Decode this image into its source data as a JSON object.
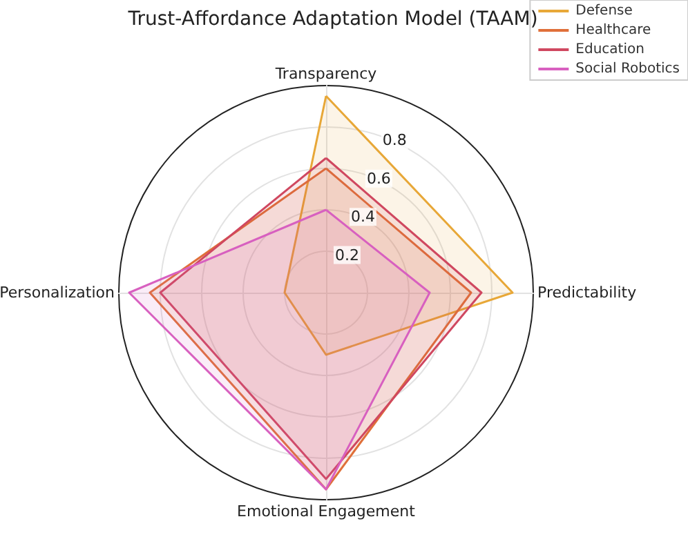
{
  "chart_data": {
    "type": "radar",
    "title": "Trust-Affordance Adaptation Model (TAAM)",
    "categories": [
      "Transparency",
      "Predictability",
      "Emotional Engagement",
      "Personalization"
    ],
    "series": [
      {
        "name": "Defense",
        "color": "#e8a838",
        "values": [
          0.95,
          0.9,
          0.3,
          0.2
        ]
      },
      {
        "name": "Healthcare",
        "color": "#e0703a",
        "values": [
          0.6,
          0.7,
          0.95,
          0.85
        ]
      },
      {
        "name": "Education",
        "color": "#d04860",
        "values": [
          0.65,
          0.75,
          0.9,
          0.8
        ]
      },
      {
        "name": "Social Robotics",
        "color": "#d860c0",
        "values": [
          0.4,
          0.5,
          0.95,
          0.95
        ]
      }
    ],
    "ylim": [
      0,
      1
    ],
    "yticks": [
      0.2,
      0.4,
      0.6,
      0.8
    ],
    "grid": true,
    "legend": "top right",
    "marker": "none"
  }
}
